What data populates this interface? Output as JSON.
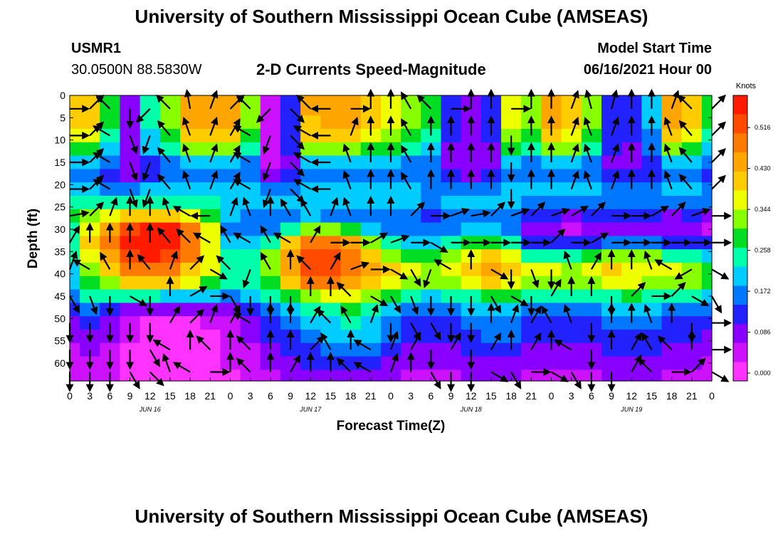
{
  "page": {
    "title_top": "University of Southern Mississippi Ocean Cube (AMSEAS)",
    "title_bottom": "University of Southern Mississippi Ocean Cube (AMSEAS)",
    "station_id": "USMR1",
    "station_coords": "30.0500N  88.5830W",
    "model_start_label": "Model Start Time",
    "model_start_value": "06/16/2021 Hour 00"
  },
  "chart_data": {
    "type": "heatmap",
    "title": "2-D Currents Speed-Magnitude",
    "xlabel": "Forecast Time(Z)",
    "ylabel": "Depth (ft)",
    "colorbar_unit": "Knots",
    "x_tick_labels": [
      "0",
      "3",
      "6",
      "9",
      "12",
      "15",
      "18",
      "21",
      "0",
      "3",
      "6",
      "9",
      "12",
      "15",
      "18",
      "21",
      "0",
      "3",
      "6",
      "9",
      "12",
      "15",
      "18",
      "21",
      "0",
      "3",
      "6",
      "9",
      "12",
      "15",
      "18",
      "21",
      "0"
    ],
    "day_labels": [
      "JUN 16",
      "JUN 17",
      "JUN 18",
      "JUN 19"
    ],
    "xlim_hours": [
      0,
      96
    ],
    "y_tick_labels": [
      "0",
      "5",
      "10",
      "15",
      "20",
      "25",
      "30",
      "35",
      "40",
      "45",
      "50",
      "55",
      "60"
    ],
    "ylim_ft": [
      0,
      64
    ],
    "colorbar_ticks": [
      "0.516",
      "0.430",
      "0.344",
      "0.258",
      "0.172",
      "0.086",
      "0.000"
    ],
    "colorbar_range": [
      0.0,
      0.6
    ],
    "colors": [
      "#ff33ff",
      "#cc11ff",
      "#8a00ff",
      "#2222ff",
      "#0077ff",
      "#00ccff",
      "#00ffaa",
      "#00dd22",
      "#88ff00",
      "#eeff00",
      "#ffcc00",
      "#ffa500",
      "#ff7a00",
      "#ff4a00",
      "#ff1a00"
    ],
    "hours": [
      0,
      3,
      6,
      9,
      12,
      15,
      18,
      21,
      24,
      27,
      30,
      33,
      36,
      39,
      42,
      45,
      48,
      51,
      54,
      57,
      60,
      63,
      66,
      69,
      72,
      75,
      78,
      81,
      84,
      87,
      90,
      93,
      96
    ],
    "depths_ft": [
      0,
      3,
      6,
      9,
      12,
      15,
      18,
      21,
      24,
      27,
      30,
      33,
      36,
      39,
      42,
      45,
      48,
      51,
      54,
      57,
      60,
      63
    ],
    "speed_knots": [
      [
        0.42,
        0.41,
        0.28,
        0.1,
        0.24,
        0.33,
        0.46,
        0.46,
        0.46,
        0.33,
        0.05,
        0.14,
        0.44,
        0.46,
        0.46,
        0.41,
        0.37,
        0.33,
        0.29,
        0.12,
        0.1,
        0.12,
        0.37,
        0.32,
        0.46,
        0.43,
        0.33,
        0.15,
        0.12,
        0.2,
        0.46,
        0.42,
        0.28
      ],
      [
        0.42,
        0.41,
        0.28,
        0.1,
        0.24,
        0.33,
        0.46,
        0.46,
        0.46,
        0.33,
        0.05,
        0.14,
        0.44,
        0.46,
        0.46,
        0.41,
        0.37,
        0.33,
        0.29,
        0.12,
        0.1,
        0.12,
        0.37,
        0.32,
        0.46,
        0.43,
        0.33,
        0.15,
        0.12,
        0.2,
        0.46,
        0.42,
        0.28
      ],
      [
        0.41,
        0.4,
        0.28,
        0.1,
        0.24,
        0.33,
        0.45,
        0.45,
        0.45,
        0.33,
        0.05,
        0.14,
        0.43,
        0.45,
        0.45,
        0.4,
        0.36,
        0.33,
        0.29,
        0.12,
        0.1,
        0.12,
        0.36,
        0.32,
        0.45,
        0.42,
        0.33,
        0.15,
        0.12,
        0.2,
        0.45,
        0.41,
        0.28
      ],
      [
        0.38,
        0.36,
        0.26,
        0.09,
        0.23,
        0.31,
        0.42,
        0.42,
        0.42,
        0.31,
        0.05,
        0.14,
        0.4,
        0.42,
        0.42,
        0.37,
        0.34,
        0.31,
        0.27,
        0.12,
        0.1,
        0.12,
        0.34,
        0.3,
        0.42,
        0.39,
        0.31,
        0.15,
        0.12,
        0.19,
        0.42,
        0.38,
        0.26
      ],
      [
        0.3,
        0.29,
        0.22,
        0.09,
        0.2,
        0.26,
        0.34,
        0.34,
        0.34,
        0.26,
        0.06,
        0.13,
        0.33,
        0.34,
        0.34,
        0.31,
        0.28,
        0.26,
        0.23,
        0.11,
        0.1,
        0.11,
        0.28,
        0.25,
        0.34,
        0.32,
        0.26,
        0.14,
        0.11,
        0.17,
        0.34,
        0.31,
        0.22
      ],
      [
        0.2,
        0.2,
        0.16,
        0.08,
        0.15,
        0.19,
        0.23,
        0.23,
        0.23,
        0.19,
        0.07,
        0.11,
        0.22,
        0.23,
        0.23,
        0.21,
        0.2,
        0.19,
        0.17,
        0.1,
        0.09,
        0.1,
        0.2,
        0.18,
        0.23,
        0.22,
        0.19,
        0.11,
        0.1,
        0.13,
        0.23,
        0.21,
        0.16
      ],
      [
        0.17,
        0.17,
        0.15,
        0.11,
        0.15,
        0.17,
        0.19,
        0.19,
        0.19,
        0.17,
        0.11,
        0.13,
        0.19,
        0.19,
        0.19,
        0.18,
        0.18,
        0.17,
        0.16,
        0.12,
        0.11,
        0.12,
        0.18,
        0.17,
        0.19,
        0.19,
        0.17,
        0.12,
        0.12,
        0.14,
        0.19,
        0.18,
        0.15
      ],
      [
        0.21,
        0.21,
        0.19,
        0.18,
        0.2,
        0.21,
        0.22,
        0.22,
        0.21,
        0.2,
        0.17,
        0.18,
        0.21,
        0.21,
        0.21,
        0.2,
        0.2,
        0.2,
        0.19,
        0.17,
        0.17,
        0.17,
        0.2,
        0.2,
        0.21,
        0.21,
        0.2,
        0.18,
        0.17,
        0.18,
        0.21,
        0.21,
        0.19
      ],
      [
        0.25,
        0.26,
        0.25,
        0.26,
        0.27,
        0.27,
        0.26,
        0.24,
        0.22,
        0.2,
        0.2,
        0.2,
        0.2,
        0.2,
        0.2,
        0.2,
        0.2,
        0.2,
        0.19,
        0.2,
        0.2,
        0.2,
        0.2,
        0.19,
        0.19,
        0.19,
        0.19,
        0.19,
        0.19,
        0.19,
        0.19,
        0.19,
        0.19
      ],
      [
        0.28,
        0.33,
        0.36,
        0.41,
        0.43,
        0.42,
        0.38,
        0.3,
        0.21,
        0.18,
        0.17,
        0.18,
        0.2,
        0.19,
        0.19,
        0.18,
        0.17,
        0.17,
        0.15,
        0.17,
        0.18,
        0.16,
        0.16,
        0.12,
        0.12,
        0.11,
        0.12,
        0.12,
        0.13,
        0.12,
        0.11,
        0.12,
        0.11
      ],
      [
        0.27,
        0.38,
        0.46,
        0.54,
        0.58,
        0.56,
        0.49,
        0.36,
        0.18,
        0.16,
        0.18,
        0.27,
        0.33,
        0.34,
        0.3,
        0.22,
        0.16,
        0.17,
        0.18,
        0.19,
        0.22,
        0.2,
        0.18,
        0.09,
        0.09,
        0.07,
        0.08,
        0.09,
        0.1,
        0.1,
        0.08,
        0.09,
        0.06
      ],
      [
        0.26,
        0.4,
        0.48,
        0.56,
        0.6,
        0.58,
        0.51,
        0.38,
        0.2,
        0.2,
        0.25,
        0.41,
        0.49,
        0.5,
        0.45,
        0.35,
        0.24,
        0.21,
        0.22,
        0.25,
        0.3,
        0.3,
        0.27,
        0.13,
        0.13,
        0.13,
        0.15,
        0.18,
        0.19,
        0.17,
        0.14,
        0.15,
        0.12
      ],
      [
        0.24,
        0.37,
        0.45,
        0.53,
        0.58,
        0.55,
        0.48,
        0.37,
        0.24,
        0.25,
        0.32,
        0.46,
        0.54,
        0.55,
        0.5,
        0.42,
        0.32,
        0.29,
        0.3,
        0.33,
        0.39,
        0.4,
        0.38,
        0.25,
        0.25,
        0.25,
        0.29,
        0.33,
        0.34,
        0.32,
        0.27,
        0.25,
        0.22
      ],
      [
        0.22,
        0.33,
        0.4,
        0.48,
        0.51,
        0.49,
        0.43,
        0.36,
        0.26,
        0.26,
        0.33,
        0.45,
        0.52,
        0.52,
        0.49,
        0.45,
        0.4,
        0.36,
        0.35,
        0.37,
        0.43,
        0.44,
        0.43,
        0.36,
        0.36,
        0.35,
        0.38,
        0.4,
        0.39,
        0.37,
        0.36,
        0.35,
        0.3
      ],
      [
        0.2,
        0.3,
        0.35,
        0.4,
        0.42,
        0.4,
        0.36,
        0.31,
        0.25,
        0.25,
        0.31,
        0.41,
        0.48,
        0.48,
        0.46,
        0.43,
        0.38,
        0.33,
        0.32,
        0.34,
        0.39,
        0.4,
        0.39,
        0.34,
        0.33,
        0.32,
        0.35,
        0.36,
        0.37,
        0.35,
        0.34,
        0.33,
        0.28
      ],
      [
        0.16,
        0.24,
        0.26,
        0.25,
        0.24,
        0.23,
        0.22,
        0.2,
        0.19,
        0.2,
        0.24,
        0.3,
        0.35,
        0.37,
        0.37,
        0.35,
        0.3,
        0.25,
        0.23,
        0.24,
        0.27,
        0.29,
        0.29,
        0.25,
        0.24,
        0.24,
        0.25,
        0.27,
        0.28,
        0.27,
        0.25,
        0.24,
        0.21
      ],
      [
        0.12,
        0.17,
        0.14,
        0.1,
        0.08,
        0.08,
        0.09,
        0.09,
        0.11,
        0.13,
        0.17,
        0.21,
        0.25,
        0.27,
        0.28,
        0.27,
        0.23,
        0.19,
        0.18,
        0.19,
        0.21,
        0.22,
        0.22,
        0.19,
        0.18,
        0.18,
        0.19,
        0.21,
        0.21,
        0.21,
        0.19,
        0.18,
        0.16
      ],
      [
        0.1,
        0.13,
        0.1,
        0.05,
        0.02,
        0.02,
        0.03,
        0.04,
        0.06,
        0.09,
        0.13,
        0.17,
        0.21,
        0.23,
        0.24,
        0.23,
        0.19,
        0.15,
        0.14,
        0.15,
        0.17,
        0.18,
        0.18,
        0.15,
        0.14,
        0.14,
        0.15,
        0.17,
        0.17,
        0.17,
        0.15,
        0.14,
        0.12
      ],
      [
        0.08,
        0.11,
        0.08,
        0.04,
        0.01,
        0.01,
        0.02,
        0.03,
        0.05,
        0.08,
        0.12,
        0.15,
        0.18,
        0.2,
        0.21,
        0.2,
        0.17,
        0.13,
        0.12,
        0.13,
        0.15,
        0.16,
        0.16,
        0.13,
        0.12,
        0.12,
        0.13,
        0.15,
        0.15,
        0.15,
        0.13,
        0.12,
        0.1
      ],
      [
        0.06,
        0.09,
        0.07,
        0.03,
        0.01,
        0.01,
        0.02,
        0.03,
        0.04,
        0.06,
        0.1,
        0.12,
        0.15,
        0.17,
        0.17,
        0.16,
        0.14,
        0.11,
        0.1,
        0.11,
        0.12,
        0.13,
        0.13,
        0.11,
        0.1,
        0.1,
        0.11,
        0.12,
        0.12,
        0.12,
        0.11,
        0.1,
        0.08
      ],
      [
        0.05,
        0.07,
        0.05,
        0.03,
        0.02,
        0.02,
        0.02,
        0.03,
        0.04,
        0.05,
        0.08,
        0.1,
        0.12,
        0.13,
        0.14,
        0.13,
        0.11,
        0.09,
        0.08,
        0.09,
        0.1,
        0.11,
        0.11,
        0.09,
        0.08,
        0.08,
        0.09,
        0.1,
        0.1,
        0.1,
        0.09,
        0.08,
        0.07
      ],
      [
        0.04,
        0.06,
        0.04,
        0.03,
        0.02,
        0.02,
        0.02,
        0.03,
        0.03,
        0.04,
        0.06,
        0.08,
        0.1,
        0.11,
        0.11,
        0.1,
        0.09,
        0.07,
        0.07,
        0.07,
        0.08,
        0.09,
        0.09,
        0.07,
        0.07,
        0.07,
        0.07,
        0.08,
        0.08,
        0.08,
        0.07,
        0.07,
        0.06
      ]
    ],
    "vectors": {
      "hours": [
        0,
        3,
        6,
        9,
        12,
        15,
        18,
        21,
        24,
        27,
        30,
        33,
        36,
        39,
        42,
        45,
        48,
        51,
        54,
        57,
        60,
        63,
        66,
        69,
        72,
        75,
        78,
        81,
        84,
        87,
        90,
        93,
        96
      ],
      "depths_ft": [
        3,
        9,
        15,
        21,
        27,
        33,
        39,
        45,
        51,
        57,
        62
      ],
      "direction_deg": [
        [
          90,
          45,
          315,
          180,
          225,
          315,
          350,
          20,
          45,
          315,
          225,
          135,
          315,
          270,
          90,
          0,
          0,
          330,
          315,
          90,
          0,
          0,
          90,
          0,
          0,
          20,
          345,
          15,
          0,
          0,
          20,
          315,
          45
        ],
        [
          90,
          45,
          300,
          160,
          200,
          320,
          340,
          20,
          30,
          300,
          200,
          135,
          300,
          270,
          20,
          0,
          0,
          330,
          0,
          0,
          0,
          0,
          180,
          0,
          0,
          20,
          340,
          20,
          0,
          0,
          340,
          320,
          45
        ],
        [
          90,
          45,
          300,
          160,
          200,
          320,
          340,
          20,
          30,
          300,
          200,
          135,
          300,
          270,
          340,
          0,
          0,
          330,
          0,
          0,
          0,
          0,
          180,
          0,
          0,
          20,
          340,
          20,
          0,
          0,
          340,
          320,
          45
        ],
        [
          90,
          45,
          300,
          160,
          200,
          320,
          340,
          20,
          30,
          300,
          200,
          135,
          300,
          270,
          340,
          0,
          0,
          330,
          0,
          0,
          0,
          0,
          180,
          0,
          0,
          20,
          340,
          20,
          0,
          0,
          340,
          320,
          45
        ],
        [
          80,
          45,
          20,
          0,
          0,
          340,
          300,
          270,
          20,
          340,
          0,
          330,
          330,
          20,
          340,
          0,
          0,
          45,
          90,
          70,
          80,
          45,
          70,
          45,
          70,
          60,
          45,
          90,
          90,
          60,
          45,
          70,
          90
        ],
        [
          30,
          0,
          0,
          0,
          0,
          320,
          315,
          300,
          330,
          300,
          330,
          300,
          30,
          90,
          90,
          60,
          70,
          90,
          120,
          90,
          90,
          90,
          90,
          90,
          45,
          90,
          60,
          90,
          90,
          90,
          90,
          90,
          90
        ],
        [
          20,
          300,
          330,
          0,
          320,
          20,
          45,
          120,
          315,
          200,
          330,
          0,
          315,
          30,
          70,
          90,
          120,
          150,
          200,
          300,
          0,
          120,
          180,
          160,
          180,
          340,
          30,
          0,
          0,
          340,
          300,
          240,
          120
        ],
        [
          150,
          160,
          180,
          120,
          180,
          0,
          60,
          90,
          150,
          180,
          180,
          180,
          0,
          0,
          315,
          120,
          150,
          160,
          180,
          180,
          180,
          150,
          120,
          180,
          30,
          0,
          0,
          180,
          45,
          90,
          45,
          120,
          150
        ],
        [
          180,
          180,
          180,
          180,
          180,
          30,
          45,
          20,
          30,
          300,
          0,
          0,
          30,
          315,
          330,
          20,
          180,
          150,
          150,
          180,
          180,
          0,
          20,
          30,
          330,
          340,
          180,
          0,
          0,
          340,
          0,
          180,
          90
        ],
        [
          180,
          180,
          180,
          180,
          150,
          300,
          0,
          315,
          0,
          315,
          0,
          0,
          45,
          330,
          0,
          300,
          20,
          30,
          180,
          30,
          180,
          30,
          0,
          30,
          0,
          300,
          180,
          0,
          30,
          330,
          315,
          0,
          90
        ],
        [
          180,
          180,
          180,
          150,
          135,
          340,
          300,
          90,
          0,
          315,
          0,
          30,
          0,
          0,
          315,
          300,
          20,
          0,
          150,
          180,
          180,
          120,
          150,
          90,
          120,
          150,
          180,
          180,
          30,
          315,
          90,
          45,
          120
        ]
      ]
    }
  }
}
